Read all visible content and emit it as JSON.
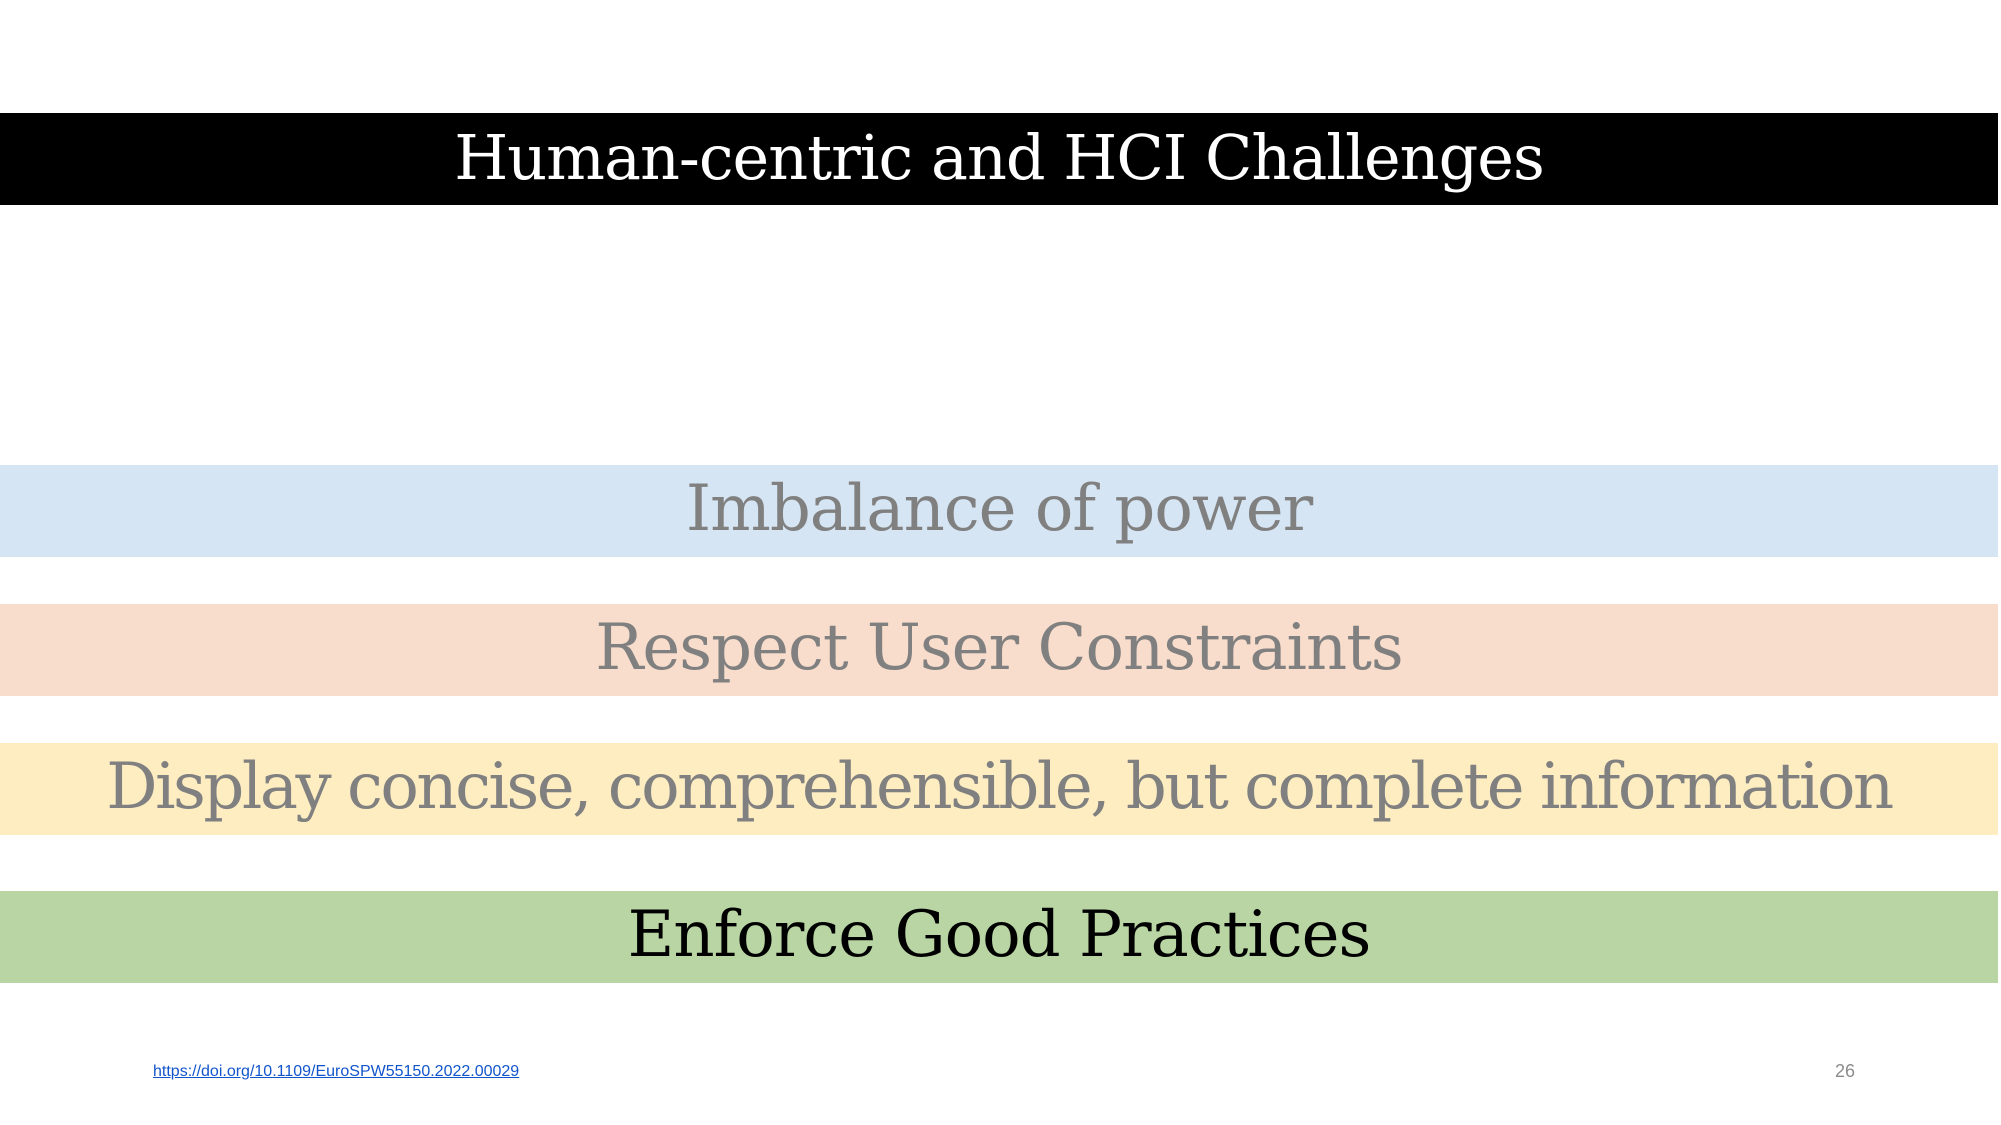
{
  "slide": {
    "title": "Human-centric and HCI Challenges",
    "items": [
      {
        "label": "Imbalance of power",
        "color": "#d6e5f3",
        "text_color": "#808080"
      },
      {
        "label": "Respect User Constraints",
        "color": "#f9ddcc",
        "text_color": "#808080"
      },
      {
        "label": "Display concise, comprehensible, but complete information",
        "color": "#fdedc1",
        "text_color": "#808080"
      },
      {
        "label": "Enforce Good Practices",
        "color": "#b8d5a3",
        "text_color": "#000000"
      }
    ],
    "footer": {
      "link_text": "https://doi.org/10.1109/EuroSPW55150.2022.00029",
      "page_number": "26"
    }
  }
}
